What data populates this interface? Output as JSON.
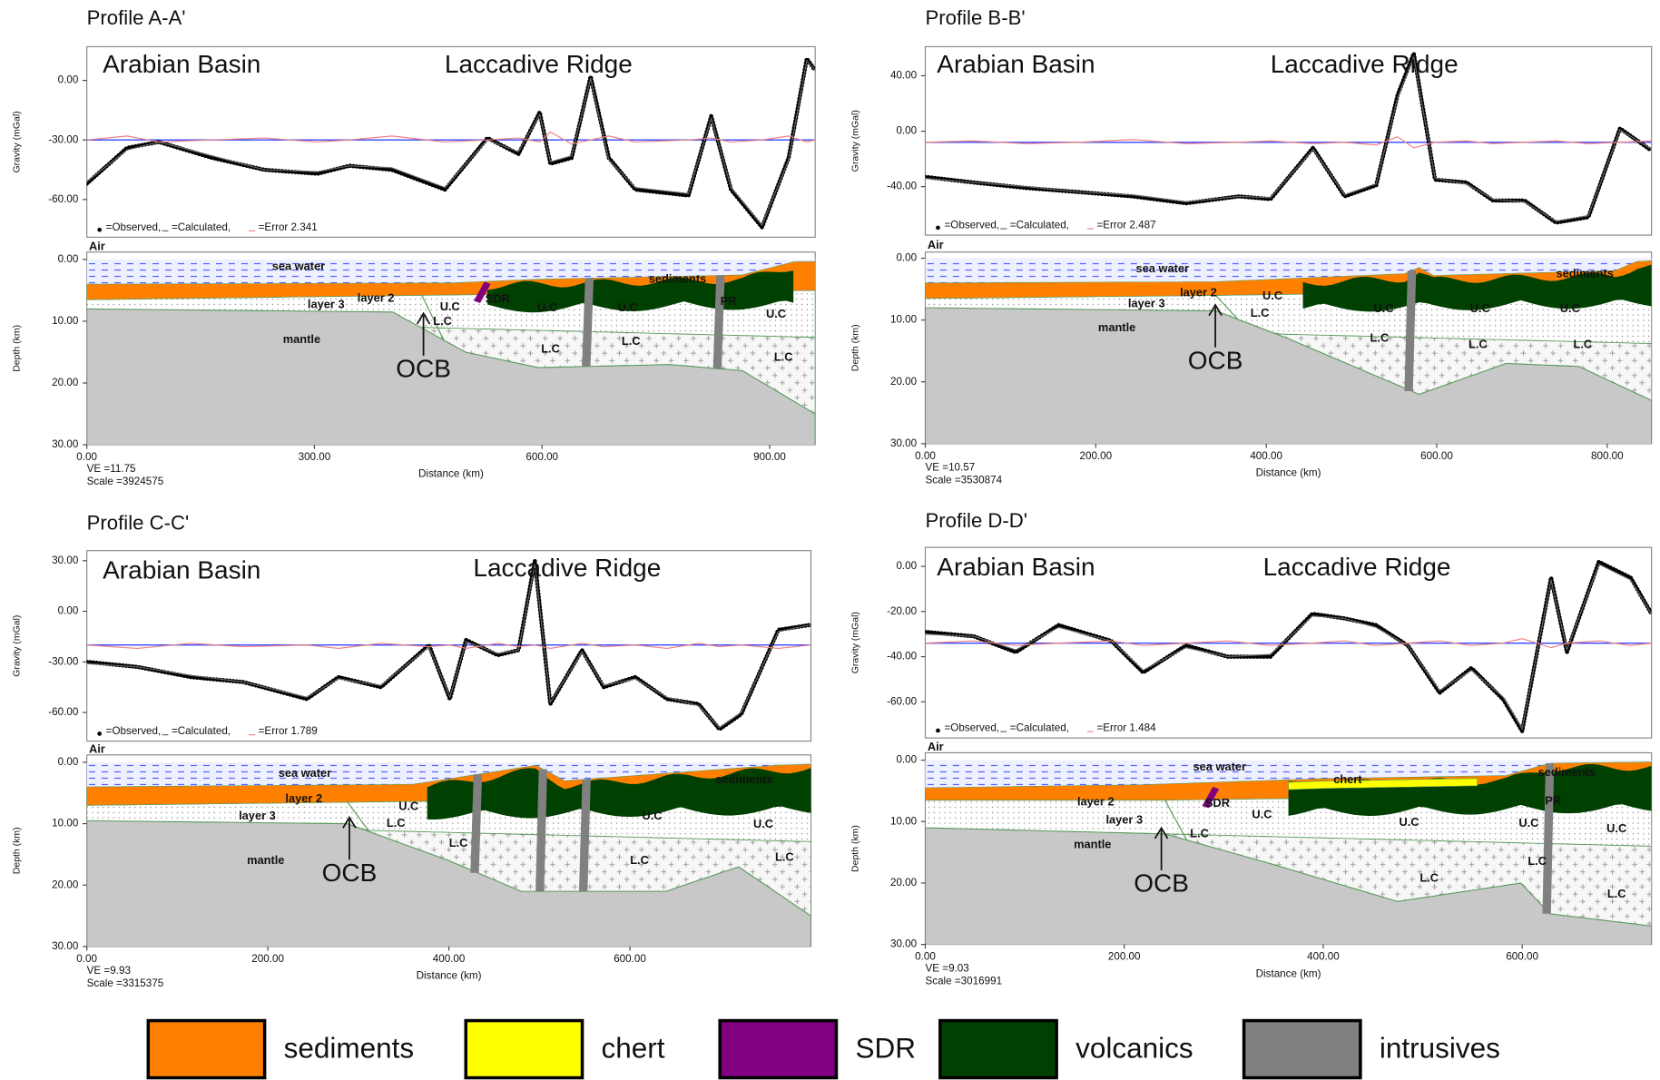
{
  "chart_data": [
    {
      "type": "line",
      "title": "Profile A-A'",
      "xlabel": "Distance (km)",
      "ylabel": "Gravity (mGal)",
      "depth_label": "Depth (km)",
      "x": [
        0,
        53,
        95,
        165,
        234,
        304,
        346,
        402,
        472,
        528,
        569,
        597,
        611,
        639,
        664,
        688,
        723,
        793,
        823,
        849,
        890,
        925,
        949,
        960
      ],
      "series": [
        {
          "name": "=Observed,",
          "color": "#000000",
          "values": [
            -52,
            -34,
            -31,
            -39,
            -45,
            -47,
            -43,
            -45,
            -55,
            -29,
            -37,
            -16,
            -42,
            -39,
            2,
            -39,
            -55,
            -58,
            -18,
            -55,
            -74,
            -39,
            11,
            5
          ]
        },
        {
          "name": "=Calculated,",
          "color": "#666666",
          "values": [
            -51,
            -35,
            -31,
            -38,
            -45,
            -46,
            -43,
            -44,
            -54,
            -30,
            -36,
            -17,
            -41,
            -38,
            1,
            -40,
            -54,
            -57,
            -19,
            -54,
            -73,
            -40,
            10,
            5
          ]
        },
        {
          "name": "=Error 2.341",
          "color": "#f08080",
          "values": [
            -30,
            -28,
            -31,
            -30,
            -29,
            -31,
            -30,
            -28,
            -31,
            -30,
            -29,
            -31,
            -26,
            -32,
            -30,
            -28,
            -31,
            -30,
            -29,
            -31,
            -30,
            -28,
            -31,
            -30
          ]
        }
      ],
      "error_baseline": -30,
      "baseline_color": "#3344ff",
      "xlim": [
        0,
        960
      ],
      "xticks": [
        {
          "value": 0,
          "label": "0.00"
        },
        {
          "value": 300,
          "label": "300.00"
        },
        {
          "value": 600,
          "label": "600.00"
        },
        {
          "value": 900,
          "label": "900.00"
        }
      ],
      "ylim": [
        -79,
        17
      ],
      "yticks": [
        {
          "value": 0,
          "label": "0.00"
        },
        {
          "value": -30,
          "label": "-30.00"
        },
        {
          "value": -60,
          "label": "-60.00"
        }
      ],
      "depth_lim": [
        -1.2,
        30
      ],
      "depth_ticks": [
        {
          "value": 0,
          "label": "0.00"
        },
        {
          "value": 10,
          "label": "10.00"
        },
        {
          "value": 20,
          "label": "20.00"
        },
        {
          "value": 30,
          "label": "30.00"
        }
      ],
      "ve": "VE =11.75",
      "scale": "Scale =3924575",
      "annotations": [
        "Arabian Basin",
        "Laccadive Ridge",
        "Air",
        "sea water",
        "sediments",
        "layer 2",
        "layer 3",
        "mantle",
        "U.C",
        "L.C",
        "SDR",
        "U.C",
        "U.C",
        "PR",
        "U.C",
        "L.C",
        "L.C",
        "L.C",
        "OCB"
      ]
    },
    {
      "type": "line",
      "title": "Profile B-B'",
      "xlabel": "Distance (km)",
      "ylabel": "Gravity (mGal)",
      "depth_label": "Depth (km)",
      "x": [
        0,
        57,
        119,
        181,
        243,
        306,
        368,
        405,
        455,
        492,
        529,
        554,
        573,
        598,
        635,
        666,
        703,
        740,
        778,
        815,
        852
      ],
      "series": [
        {
          "name": "=Observed,",
          "color": "#000000",
          "values": [
            -33,
            -37,
            -41,
            -44,
            -47,
            -52,
            -47,
            -49,
            -12,
            -47,
            -39,
            26,
            56,
            -35,
            -37,
            -50,
            -50,
            -66,
            -62,
            2,
            -14
          ]
        },
        {
          "name": "=Calculated,",
          "color": "#666666",
          "values": [
            -34,
            -37,
            -40,
            -44,
            -46,
            -51,
            -47,
            -48,
            -13,
            -46,
            -38,
            24,
            54,
            -34,
            -38,
            -49,
            -51,
            -65,
            -61,
            1,
            -13
          ]
        },
        {
          "name": "=Error 2.487",
          "color": "#f08080",
          "values": [
            -8,
            -7,
            -9,
            -8,
            -6,
            -9,
            -8,
            -7,
            -9,
            -8,
            -10,
            -4,
            -12,
            -8,
            -7,
            -9,
            -8,
            -7,
            -9,
            -8,
            -7
          ]
        }
      ],
      "error_baseline": -8,
      "baseline_color": "#3344ff",
      "xlim": [
        0,
        852
      ],
      "xticks": [
        {
          "value": 0,
          "label": "0.00"
        },
        {
          "value": 200,
          "label": "200.00"
        },
        {
          "value": 400,
          "label": "400.00"
        },
        {
          "value": 600,
          "label": "600.00"
        },
        {
          "value": 800,
          "label": "800.00"
        }
      ],
      "ylim": [
        -75,
        61
      ],
      "yticks": [
        {
          "value": 40,
          "label": "40.00"
        },
        {
          "value": 0,
          "label": "0.00"
        },
        {
          "value": -40,
          "label": "-40.00"
        }
      ],
      "depth_lim": [
        -1,
        30
      ],
      "depth_ticks": [
        {
          "value": 0,
          "label": "0.00"
        },
        {
          "value": 10,
          "label": "10.00"
        },
        {
          "value": 20,
          "label": "20.00"
        },
        {
          "value": 30,
          "label": "30.00"
        }
      ],
      "ve": "VE =10.57",
      "scale": "Scale =3530874",
      "annotations": [
        "Arabian Basin",
        "Laccadive Ridge",
        "Air",
        "sea water",
        "layer 2",
        "layer 3",
        "U.C",
        "L.C",
        "mantle",
        "U.C",
        "U.C",
        "U.C",
        "sediments",
        "L.C",
        "L.C",
        "L.C",
        "OCB"
      ]
    },
    {
      "type": "line",
      "title": "Profile C-C'",
      "xlabel": "Distance (km)",
      "ylabel": "Gravity (mGal)",
      "depth_label": "Depth (km)",
      "x": [
        0,
        56,
        115,
        173,
        243,
        278,
        325,
        378,
        401,
        419,
        454,
        477,
        495,
        512,
        547,
        571,
        606,
        641,
        676,
        699,
        723,
        764,
        800
      ],
      "series": [
        {
          "name": "=Observed,",
          "color": "#000000",
          "values": [
            -30,
            -33,
            -39,
            -42,
            -52,
            -39,
            -45,
            -20,
            -52,
            -17,
            -26,
            -23,
            30,
            -55,
            -23,
            -45,
            -39,
            -52,
            -55,
            -70,
            -61,
            -11,
            -8
          ]
        },
        {
          "name": "=Calculated,",
          "color": "#666666",
          "values": [
            -31,
            -33,
            -38,
            -42,
            -51,
            -40,
            -44,
            -21,
            -51,
            -18,
            -25,
            -23,
            28,
            -54,
            -24,
            -44,
            -40,
            -51,
            -56,
            -69,
            -60,
            -12,
            -8
          ]
        },
        {
          "name": "=Error 1.789",
          "color": "#f08080",
          "values": [
            -20,
            -22,
            -19,
            -21,
            -20,
            -22,
            -19,
            -21,
            -20,
            -22,
            -19,
            -21,
            -20,
            -22,
            -19,
            -21,
            -20,
            -22,
            -19,
            -21,
            -20,
            -22,
            -20
          ]
        }
      ],
      "error_baseline": -20,
      "baseline_color": "#3344ff",
      "xlim": [
        0,
        800
      ],
      "xticks": [
        {
          "value": 0,
          "label": "0.00"
        },
        {
          "value": 200,
          "label": "200.00"
        },
        {
          "value": 400,
          "label": "400.00"
        },
        {
          "value": 600,
          "label": "600.00"
        }
      ],
      "ylim": [
        -77,
        36
      ],
      "yticks": [
        {
          "value": 30,
          "label": "30.00"
        },
        {
          "value": 0,
          "label": "0.00"
        },
        {
          "value": -30,
          "label": "-30.00"
        },
        {
          "value": -60,
          "label": "-60.00"
        }
      ],
      "depth_lim": [
        -1.2,
        30
      ],
      "depth_ticks": [
        {
          "value": 0,
          "label": "0.00"
        },
        {
          "value": 10,
          "label": "10.00"
        },
        {
          "value": 20,
          "label": "20.00"
        },
        {
          "value": 30,
          "label": "30.00"
        }
      ],
      "ve": "VE =9.93",
      "scale": "Scale =3315375",
      "annotations": [
        "Arabian Basin",
        "Laccadive Ridge",
        "Air",
        "sea water",
        "layer 2",
        "layer 3",
        "U.C",
        "L.C",
        "mantle",
        "L.C",
        "U.C",
        "L.C",
        "U.C",
        "L.C",
        "sediments",
        "OCB"
      ]
    },
    {
      "type": "line",
      "title": "Profile D-D'",
      "xlabel": "Distance (km)",
      "ylabel": "Gravity (mGal)",
      "depth_label": "Depth (km)",
      "x": [
        0,
        49,
        91,
        134,
        187,
        219,
        262,
        304,
        347,
        389,
        421,
        453,
        485,
        517,
        549,
        581,
        600,
        629,
        645,
        677,
        709,
        730
      ],
      "series": [
        {
          "name": "=Observed,",
          "color": "#000000",
          "values": [
            -29,
            -31,
            -38,
            -26,
            -33,
            -47,
            -35,
            -40,
            -40,
            -21,
            -23,
            -26,
            -35,
            -56,
            -45,
            -59,
            -73,
            -5,
            -38,
            2,
            -5,
            -21
          ]
        },
        {
          "name": "=Calculated,",
          "color": "#666666",
          "values": [
            -30,
            -31,
            -37,
            -27,
            -33,
            -46,
            -36,
            -40,
            -39,
            -22,
            -23,
            -27,
            -35,
            -55,
            -46,
            -58,
            -72,
            -6,
            -37,
            1,
            -6,
            -21
          ]
        },
        {
          "name": "=Error 1.484",
          "color": "#f08080",
          "values": [
            -34,
            -33,
            -35,
            -34,
            -33,
            -35,
            -34,
            -33,
            -35,
            -34,
            -33,
            -35,
            -34,
            -33,
            -35,
            -34,
            -32,
            -36,
            -34,
            -33,
            -35,
            -34
          ]
        }
      ],
      "error_baseline": -34,
      "baseline_color": "#3344ff",
      "xlim": [
        0,
        730
      ],
      "xticks": [
        {
          "value": 0,
          "label": "0.00"
        },
        {
          "value": 200,
          "label": "200.00"
        },
        {
          "value": 400,
          "label": "400.00"
        },
        {
          "value": 600,
          "label": "600.00"
        }
      ],
      "ylim": [
        -76,
        8.4
      ],
      "yticks": [
        {
          "value": 0,
          "label": "0.00"
        },
        {
          "value": -20,
          "label": "-20.00"
        },
        {
          "value": -40,
          "label": "-40.00"
        },
        {
          "value": -60,
          "label": "-60.00"
        }
      ],
      "depth_lim": [
        -1.2,
        30
      ],
      "depth_ticks": [
        {
          "value": 0,
          "label": "0.00"
        },
        {
          "value": 10,
          "label": "10.00"
        },
        {
          "value": 20,
          "label": "20.00"
        },
        {
          "value": 30,
          "label": "30.00"
        }
      ],
      "ve": "VE =9.03",
      "scale": "Scale =3016991",
      "annotations": [
        "Arabian Basin",
        "Laccadive Ridge",
        "Air",
        "sea water",
        "chert",
        "sediments",
        "layer 2",
        "layer 3",
        "SDR",
        "U.C",
        "U.C",
        "U.C",
        "PR",
        "U.C",
        "mantle",
        "L.C",
        "L.C",
        "L.C",
        "L.C",
        "OCB"
      ]
    }
  ],
  "legend": {
    "items": [
      {
        "label": "sediments",
        "color": "#ff8000"
      },
      {
        "label": "chert",
        "color": "#ffff00"
      },
      {
        "label": "SDR",
        "color": "#800080"
      },
      {
        "label": "volcanics",
        "color": "#004000"
      },
      {
        "label": "intrusives",
        "color": "#808080"
      }
    ]
  }
}
